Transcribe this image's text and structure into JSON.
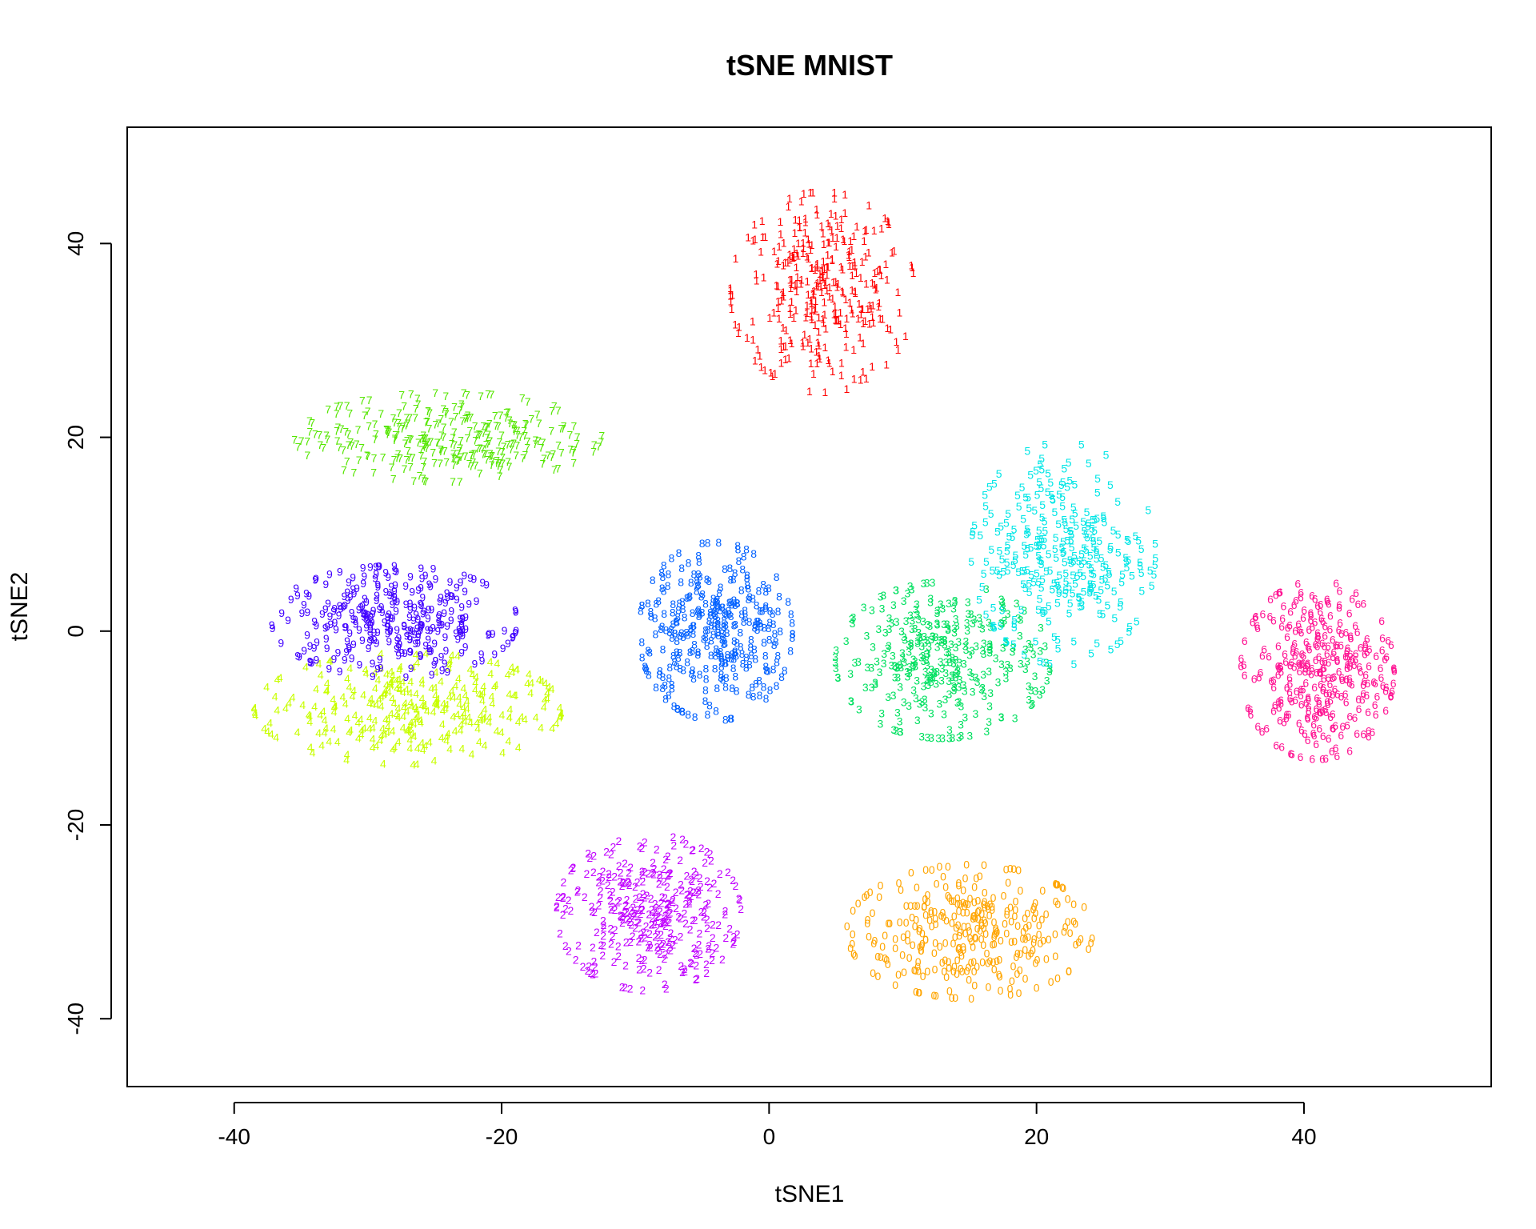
{
  "chart_data": {
    "type": "scatter",
    "title": "tSNE MNIST",
    "xlabel": "tSNE1",
    "ylabel": "tSNE2",
    "xlim": [
      -48,
      54
    ],
    "ylim": [
      -47,
      52
    ],
    "x_ticks": [
      -40,
      -20,
      0,
      20,
      40
    ],
    "y_ticks": [
      -40,
      -20,
      0,
      20,
      40
    ],
    "x_tick_labels": [
      "-40",
      "-20",
      "0",
      "20",
      "40"
    ],
    "y_tick_labels": [
      "-40",
      "-20",
      "0",
      "20",
      "40"
    ],
    "grid": false,
    "legend": "none",
    "marker": "digit label",
    "series": [
      {
        "label": "0",
        "color": "#FFA500",
        "center": [
          15,
          -31
        ],
        "spread": [
          8,
          6
        ],
        "n": 320
      },
      {
        "label": "1",
        "color": "#FF0000",
        "center": [
          4,
          35
        ],
        "spread": [
          6,
          9
        ],
        "n": 320
      },
      {
        "label": "2",
        "color": "#C000FF",
        "center": [
          -9,
          -29
        ],
        "spread": [
          6,
          7
        ],
        "n": 320
      },
      {
        "label": "3",
        "color": "#00E060",
        "center": [
          13,
          -3
        ],
        "spread": [
          7,
          7
        ],
        "n": 320
      },
      {
        "label": "4",
        "color": "#C8FF00",
        "center": [
          -27,
          -8
        ],
        "spread": [
          10,
          5
        ],
        "n": 300
      },
      {
        "label": "5",
        "color": "#00E6E6",
        "center": [
          22,
          8
        ],
        "spread": [
          6,
          10
        ],
        "n": 300
      },
      {
        "label": "6",
        "color": "#FF1493",
        "center": [
          41,
          -4
        ],
        "spread": [
          5,
          8
        ],
        "n": 320
      },
      {
        "label": "7",
        "color": "#55E600",
        "center": [
          -24,
          20
        ],
        "spread": [
          10,
          4
        ],
        "n": 300
      },
      {
        "label": "8",
        "color": "#0060FF",
        "center": [
          -4,
          0
        ],
        "spread": [
          5,
          8
        ],
        "n": 320
      },
      {
        "label": "9",
        "color": "#4000FF",
        "center": [
          -28,
          1
        ],
        "spread": [
          8,
          5
        ],
        "n": 300
      }
    ]
  }
}
